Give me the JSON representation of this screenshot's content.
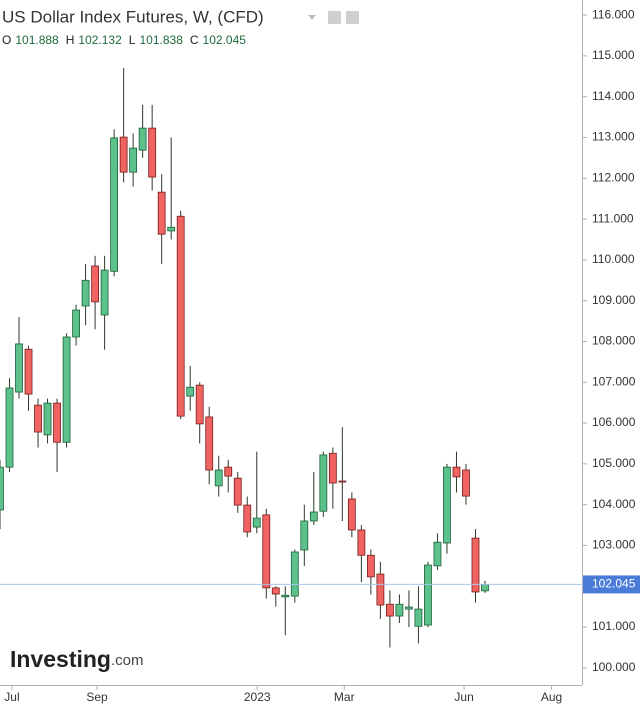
{
  "chart_data": {
    "type": "candlestick",
    "title": "US Dollar Index Futures, W, (CFD)",
    "ohlc_labels": [
      "O",
      "H",
      "L",
      "C"
    ],
    "brand": "Investing",
    "brand_suffix": ".com",
    "up_color": "#5cc18a",
    "down_color": "#ef6461",
    "open": [
      103.87,
      104.92,
      106.76,
      107.81,
      106.44,
      105.71,
      106.49,
      105.53,
      108.11,
      108.87,
      109.85,
      108.65,
      109.72,
      113.01,
      112.15,
      112.69,
      113.23,
      111.66,
      110.71,
      111.07,
      106.66,
      106.93,
      106.15,
      104.46,
      104.92,
      104.65,
      103.99,
      103.45,
      103.75,
      101.96,
      101.74,
      101.76,
      102.89,
      103.6,
      103.84,
      105.26,
      104.58,
      104.14,
      103.38,
      102.76,
      102.3,
      101.56,
      101.27,
      101.44,
      101.02,
      101.05,
      102.5,
      103.06,
      104.92,
      104.85,
      103.18,
      101.888
    ],
    "high": [
      105.1,
      107.1,
      108.6,
      107.9,
      106.6,
      106.6,
      106.6,
      108.2,
      108.9,
      109.9,
      110.1,
      110.1,
      113.2,
      114.7,
      113.1,
      113.8,
      113.8,
      112.1,
      113.0,
      111.2,
      107.4,
      107.0,
      106.4,
      105.2,
      105.1,
      104.8,
      104.2,
      105.3,
      103.9,
      102.0,
      102.0,
      102.9,
      104.0,
      104.8,
      105.3,
      105.4,
      105.9,
      104.3,
      103.5,
      102.9,
      102.6,
      101.9,
      101.8,
      101.9,
      102.0,
      102.6,
      103.3,
      105.0,
      105.3,
      105.0,
      103.4,
      102.132
    ],
    "low": [
      103.4,
      104.8,
      106.6,
      106.3,
      105.4,
      105.5,
      104.8,
      105.4,
      107.9,
      108.4,
      108.3,
      107.8,
      109.6,
      111.9,
      111.8,
      112.5,
      111.7,
      109.9,
      110.5,
      106.1,
      106.3,
      105.5,
      104.5,
      104.2,
      104.3,
      103.8,
      103.2,
      103.3,
      101.7,
      101.5,
      100.8,
      101.6,
      102.5,
      103.5,
      103.7,
      103.9,
      103.6,
      103.2,
      102.1,
      101.8,
      101.2,
      100.5,
      101.1,
      101.0,
      100.6,
      101.0,
      102.4,
      102.8,
      104.3,
      104.0,
      101.6,
      101.838
    ],
    "close": [
      104.92,
      106.86,
      107.94,
      106.71,
      105.78,
      106.49,
      105.53,
      108.11,
      108.77,
      109.5,
      108.97,
      109.75,
      112.99,
      112.15,
      112.74,
      113.23,
      112.03,
      110.63,
      110.8,
      106.17,
      106.88,
      105.98,
      104.85,
      104.85,
      104.7,
      103.99,
      103.33,
      103.67,
      101.96,
      101.81,
      101.78,
      102.84,
      103.6,
      103.82,
      105.22,
      104.53,
      104.56,
      103.38,
      102.76,
      102.23,
      101.54,
      101.27,
      101.56,
      101.49,
      101.44,
      102.52,
      103.08,
      104.92,
      104.68,
      104.21,
      101.86,
      102.045
    ],
    "xlim": [
      0,
      61.2
    ],
    "xticks": [
      {
        "value": 1.26,
        "label": "Jul"
      },
      {
        "value": 10.2,
        "label": "Sep"
      },
      {
        "value": 27.05,
        "label": "2023"
      },
      {
        "value": 36.2,
        "label": "Mar"
      },
      {
        "value": 48.8,
        "label": "Jun"
      },
      {
        "value": 58.0,
        "label": "Aug"
      }
    ],
    "ylim": [
      99.58,
      116.37
    ],
    "yticks": [
      {
        "value": 100,
        "label": "100.000"
      },
      {
        "value": 101,
        "label": "101.000"
      },
      {
        "value": 102,
        "label": "102.000"
      },
      {
        "value": 103,
        "label": "103.000"
      },
      {
        "value": 104,
        "label": "104.000"
      },
      {
        "value": 105,
        "label": "105.000"
      },
      {
        "value": 106,
        "label": "106.000"
      },
      {
        "value": 107,
        "label": "107.000"
      },
      {
        "value": 108,
        "label": "108.000"
      },
      {
        "value": 109,
        "label": "109.000"
      },
      {
        "value": 110,
        "label": "110.000"
      },
      {
        "value": 111,
        "label": "111.000"
      },
      {
        "value": 112,
        "label": "112.000"
      },
      {
        "value": 113,
        "label": "113.000"
      },
      {
        "value": 114,
        "label": "114.000"
      },
      {
        "value": 115,
        "label": "115.000"
      },
      {
        "value": 116,
        "label": "116.000"
      }
    ]
  }
}
